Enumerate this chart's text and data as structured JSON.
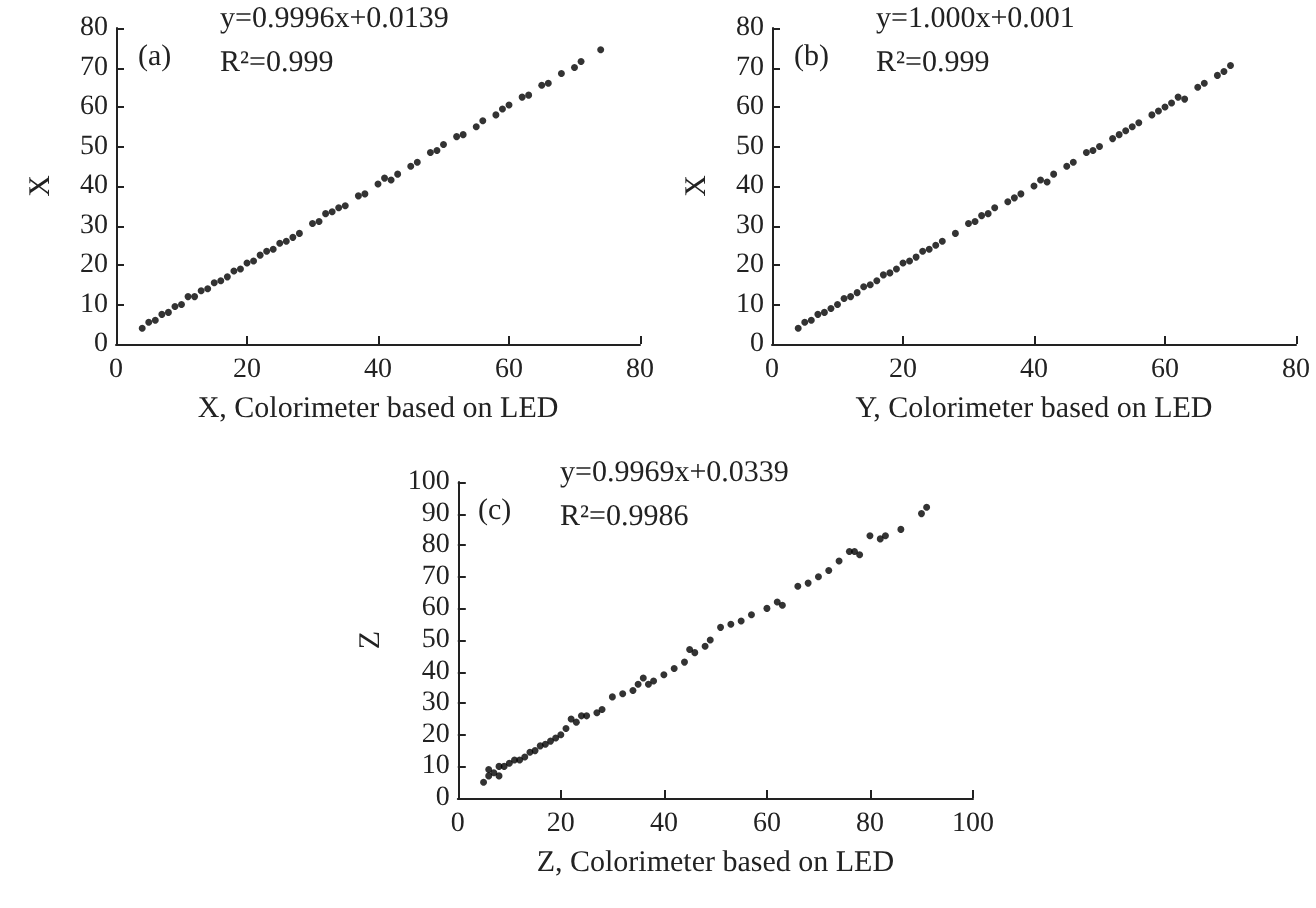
{
  "chart_data": [
    {
      "type": "scatter",
      "title": "(a)",
      "annotations": [
        "y=0.9996x+0.0139",
        "R²=0.999"
      ],
      "xlabel": "X, Colorimeter based on LED",
      "ylabel": "X",
      "xlim": [
        0,
        80
      ],
      "ylim": [
        0,
        80
      ],
      "xticks": [
        0,
        20,
        40,
        60,
        80
      ],
      "yticks": [
        0,
        10,
        20,
        30,
        40,
        50,
        60,
        70,
        80
      ],
      "marker": "circle",
      "series": [
        {
          "color": "#000000",
          "x": [
            4,
            5,
            6,
            7,
            8,
            9,
            10,
            11,
            12,
            13,
            14,
            15,
            16,
            17,
            18,
            19,
            20,
            21,
            22,
            23,
            24,
            25,
            26,
            27,
            28,
            30,
            31,
            32,
            33,
            34,
            35,
            37,
            38,
            40,
            41,
            42,
            43,
            45,
            46,
            48,
            49,
            50,
            52,
            53,
            55,
            56,
            58,
            59,
            60,
            62,
            63,
            65,
            66,
            68,
            70,
            71,
            74
          ],
          "values": [
            4,
            5.5,
            6,
            7.5,
            8,
            9.5,
            10,
            12,
            12,
            13.5,
            14,
            15.5,
            16,
            17,
            18.5,
            19,
            20.5,
            21,
            22.5,
            23.5,
            24,
            25.5,
            26,
            27,
            28,
            30.5,
            31,
            33,
            33.5,
            34.5,
            35,
            37.5,
            38,
            40.5,
            42,
            41.5,
            43,
            45,
            46,
            48.5,
            49,
            50.5,
            52.5,
            53,
            55,
            56.5,
            58,
            59.5,
            60.5,
            62.5,
            63,
            65.5,
            66,
            68.5,
            70,
            71.5,
            74.5
          ]
        }
      ]
    },
    {
      "type": "scatter",
      "title": "(b)",
      "annotations": [
        "y=1.000x+0.001",
        "R²=0.999"
      ],
      "xlabel": "Y, Colorimeter based on LED",
      "ylabel": "X",
      "xlim": [
        0,
        80
      ],
      "ylim": [
        0,
        80
      ],
      "xticks": [
        0,
        20,
        40,
        60,
        80
      ],
      "yticks": [
        0,
        10,
        20,
        30,
        40,
        50,
        60,
        70,
        80
      ],
      "marker": "circle",
      "series": [
        {
          "color": "#000000",
          "x": [
            4,
            5,
            6,
            7,
            8,
            9,
            10,
            11,
            12,
            13,
            14,
            15,
            16,
            17,
            18,
            19,
            20,
            21,
            22,
            23,
            24,
            25,
            26,
            28,
            30,
            31,
            32,
            33,
            34,
            36,
            37,
            38,
            40,
            41,
            42,
            43,
            45,
            46,
            48,
            49,
            50,
            52,
            53,
            54,
            55,
            56,
            58,
            59,
            60,
            61,
            62,
            63,
            65,
            66,
            68,
            69,
            70
          ],
          "values": [
            4,
            5.5,
            6,
            7.5,
            8,
            9,
            10,
            11.5,
            12,
            13,
            14.5,
            15,
            16,
            17.5,
            18,
            19,
            20.5,
            21,
            22,
            23.5,
            24,
            25,
            26,
            28,
            30.5,
            31,
            32.5,
            33,
            34.5,
            36,
            37,
            38,
            40,
            41.5,
            41,
            43,
            45,
            46,
            48.5,
            49,
            50,
            52,
            53,
            54,
            55,
            56,
            58,
            59,
            60,
            61,
            62.5,
            62,
            65,
            66,
            68,
            69,
            70.5
          ]
        }
      ]
    },
    {
      "type": "scatter",
      "title": "(c)",
      "annotations": [
        "y=0.9969x+0.0339",
        "R²=0.9986"
      ],
      "xlabel": "Z, Colorimeter based on LED",
      "ylabel": "Z",
      "xlim": [
        0,
        100
      ],
      "ylim": [
        0,
        100
      ],
      "xticks": [
        0,
        20,
        40,
        60,
        80,
        100
      ],
      "yticks": [
        0,
        10,
        20,
        30,
        40,
        50,
        60,
        70,
        80,
        90,
        100
      ],
      "marker": "circle",
      "series": [
        {
          "color": "#000000",
          "x": [
            5,
            6,
            6,
            7,
            8,
            8,
            9,
            10,
            11,
            12,
            13,
            14,
            15,
            16,
            17,
            18,
            19,
            20,
            21,
            22,
            23,
            24,
            25,
            27,
            28,
            30,
            32,
            34,
            35,
            36,
            37,
            38,
            40,
            42,
            44,
            45,
            46,
            48,
            49,
            51,
            53,
            55,
            57,
            60,
            62,
            63,
            66,
            68,
            70,
            72,
            74,
            76,
            77,
            78,
            80,
            82,
            83,
            86,
            90,
            91
          ],
          "values": [
            5,
            7,
            9,
            8,
            10,
            7,
            10,
            11,
            12,
            12,
            13,
            14.5,
            15,
            16.5,
            17,
            18,
            19,
            20,
            22,
            25,
            24,
            26,
            26,
            27,
            28,
            32,
            33,
            34,
            36,
            38,
            36,
            37,
            39,
            41,
            43,
            47,
            46,
            48,
            50,
            54,
            55,
            56,
            58,
            60,
            62,
            61,
            67,
            68,
            70,
            72,
            75,
            78,
            78,
            77,
            83,
            82,
            83,
            85,
            90,
            92
          ]
        }
      ]
    }
  ]
}
